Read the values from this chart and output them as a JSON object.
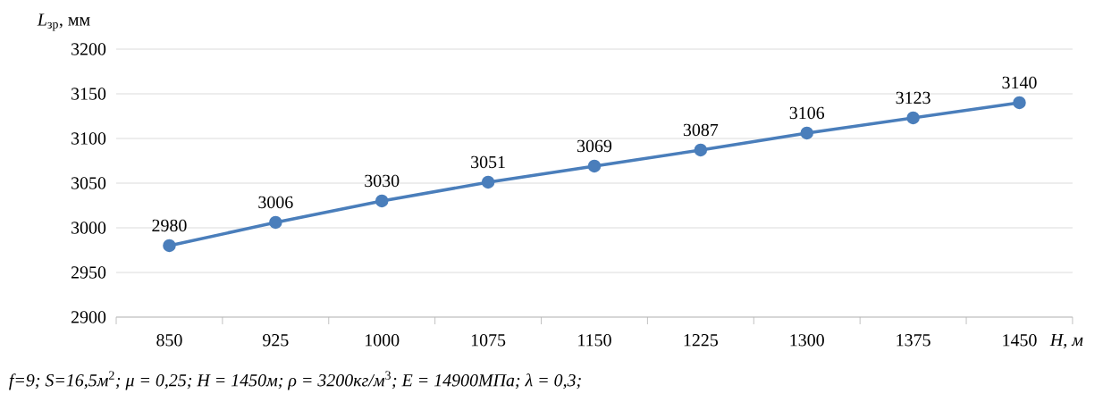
{
  "chart_data": {
    "type": "line",
    "xlabel": "H, м",
    "ylabel": "*L*$_{зр}$, мм",
    "categories": [
      "850",
      "925",
      "1000",
      "1075",
      "1150",
      "1225",
      "1300",
      "1375",
      "1450"
    ],
    "values": [
      2980,
      3006,
      3030,
      3051,
      3069,
      3087,
      3106,
      3123,
      3140
    ],
    "color": "#4a7ebb",
    "ylim": [
      2900,
      3200
    ],
    "yticks": [
      2900,
      2950,
      3000,
      3050,
      3100,
      3150,
      3200
    ],
    "grid": "y",
    "marker": "circle",
    "line_style": "solid",
    "data_labels": true,
    "annotations": [
      "*f=9; S=16,5м*$^{2}$*; μ = 0,25; H = 1450м; ρ = 3200кг/м*$^{3}$*; E = 14900МПа; λ = 0,3;*"
    ]
  }
}
